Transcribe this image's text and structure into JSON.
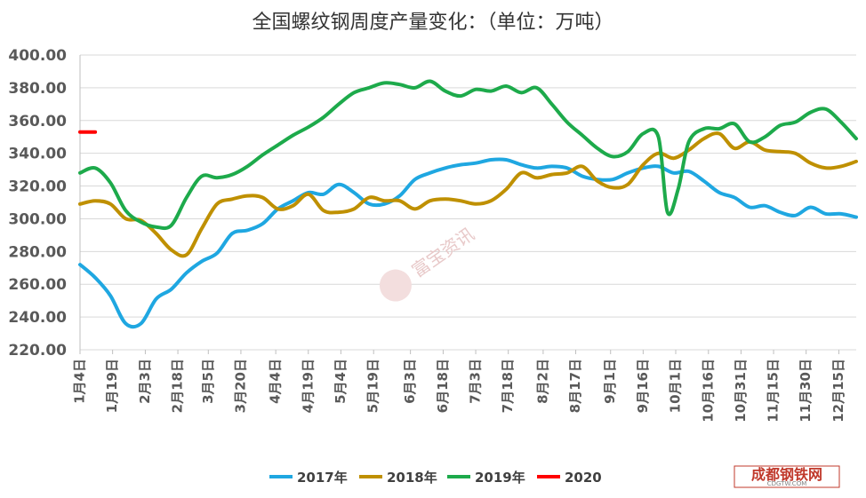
{
  "chart_data": {
    "type": "line",
    "title": "全国螺纹钢周度产量变化：（单位：万吨）",
    "ylim": [
      220,
      400
    ],
    "yticks": [
      "220.00",
      "240.00",
      "260.00",
      "280.00",
      "300.00",
      "320.00",
      "340.00",
      "360.00",
      "380.00",
      "400.00"
    ],
    "x_range": [
      1,
      52
    ],
    "xticks": [
      {
        "x": 1,
        "label": "1月4日"
      },
      {
        "x": 3.14,
        "label": "1月19日"
      },
      {
        "x": 5.29,
        "label": "2月3日"
      },
      {
        "x": 7.43,
        "label": "2月18日"
      },
      {
        "x": 9.43,
        "label": "3月5日"
      },
      {
        "x": 11.57,
        "label": "3月20日"
      },
      {
        "x": 13.86,
        "label": "4月4日"
      },
      {
        "x": 16,
        "label": "4月19日"
      },
      {
        "x": 18.14,
        "label": "5月4日"
      },
      {
        "x": 20.29,
        "label": "5月19日"
      },
      {
        "x": 22.71,
        "label": "6月3日"
      },
      {
        "x": 24.86,
        "label": "6月18日"
      },
      {
        "x": 27,
        "label": "7月3日"
      },
      {
        "x": 29.14,
        "label": "7月18日"
      },
      {
        "x": 31.43,
        "label": "8月2日"
      },
      {
        "x": 33.57,
        "label": "8月17日"
      },
      {
        "x": 35.86,
        "label": "9月1日"
      },
      {
        "x": 38,
        "label": "9月16日"
      },
      {
        "x": 40.14,
        "label": "10月1日"
      },
      {
        "x": 42.29,
        "label": "10月16日"
      },
      {
        "x": 44.43,
        "label": "10月31日"
      },
      {
        "x": 46.57,
        "label": "11月15日"
      },
      {
        "x": 48.71,
        "label": "11月30日"
      },
      {
        "x": 50.86,
        "label": "12月15日"
      }
    ],
    "series": [
      {
        "name": "2017年",
        "color": "#1FA7E1",
        "x": [
          1,
          2,
          3,
          4,
          5,
          6,
          7,
          8,
          9,
          10,
          11,
          12,
          13,
          14,
          15,
          16,
          17,
          18,
          19,
          20,
          21,
          22,
          23,
          24,
          25,
          26,
          27,
          28,
          29,
          30,
          31,
          32,
          33,
          34,
          35,
          36,
          37,
          38,
          39,
          40,
          41,
          42,
          43,
          44,
          45,
          46,
          47,
          48,
          49,
          50,
          51,
          52
        ],
        "y": [
          272,
          264,
          253,
          236,
          236,
          251,
          257,
          267,
          274,
          279,
          291,
          293,
          297,
          306,
          311,
          316,
          315,
          321,
          316,
          309,
          309,
          314,
          324,
          328,
          331,
          333,
          334,
          336,
          336,
          333,
          331,
          332,
          331,
          326,
          324,
          324,
          328,
          331,
          332,
          328,
          329,
          323,
          316,
          313,
          307,
          308,
          304,
          302,
          307,
          303,
          303,
          301
        ]
      },
      {
        "name": "2018年",
        "color": "#BF9000",
        "x": [
          1,
          2,
          3,
          4,
          5,
          6,
          7,
          8,
          9,
          10,
          11,
          12,
          13,
          14,
          15,
          16,
          17,
          18,
          19,
          20,
          21,
          22,
          23,
          24,
          25,
          26,
          27,
          28,
          29,
          30,
          31,
          32,
          33,
          34,
          35,
          36,
          37,
          38,
          39,
          40,
          41,
          42,
          43,
          44,
          45,
          46,
          47,
          48,
          49,
          50,
          51,
          52
        ],
        "y": [
          309,
          311,
          309,
          300,
          299,
          291,
          281,
          278,
          294,
          309,
          312,
          314,
          313,
          306,
          308,
          315,
          305,
          304,
          306,
          313,
          311,
          311,
          306,
          311,
          312,
          311,
          309,
          311,
          318,
          328,
          325,
          327,
          328,
          332,
          323,
          319,
          321,
          333,
          340,
          337,
          342,
          349,
          352,
          343,
          347,
          342,
          341,
          340,
          334,
          331,
          332,
          335
        ]
      },
      {
        "name": "2019年",
        "color": "#1DAA4B",
        "x": [
          1,
          2,
          3,
          4,
          5,
          6,
          7,
          8,
          9,
          10,
          11,
          12,
          13,
          14,
          15,
          16,
          17,
          18,
          19,
          20,
          21,
          22,
          23,
          24,
          25,
          26,
          27,
          28,
          29,
          30,
          31,
          32,
          33,
          34,
          35,
          36,
          37,
          38,
          39,
          39.6,
          40.3,
          41,
          42,
          43,
          44,
          45,
          46,
          47,
          48,
          49,
          50,
          51,
          52
        ],
        "y": [
          328,
          331,
          322,
          305,
          298,
          295,
          296,
          313,
          326,
          325,
          327,
          332,
          339,
          345,
          351,
          356,
          362,
          370,
          377,
          380,
          383,
          382,
          380,
          384,
          378,
          375,
          379,
          378,
          381,
          377,
          380,
          370,
          359,
          351,
          343,
          338,
          341,
          352,
          350,
          304,
          318,
          347,
          355,
          355,
          358,
          347,
          350,
          357,
          359,
          365,
          367,
          359,
          349
        ]
      },
      {
        "name": "2020",
        "color": "#FF0000",
        "x": [
          1,
          2
        ],
        "y": [
          353,
          353
        ]
      }
    ],
    "legend": {
      "placement": "bottom",
      "entries": [
        "2017年",
        "2018年",
        "2019年",
        "2020"
      ]
    },
    "grid": true
  },
  "watermark": {
    "text": "富宝资讯"
  },
  "logo": {
    "text": "成都钢铁网",
    "sub": "CDGTW.COM"
  }
}
